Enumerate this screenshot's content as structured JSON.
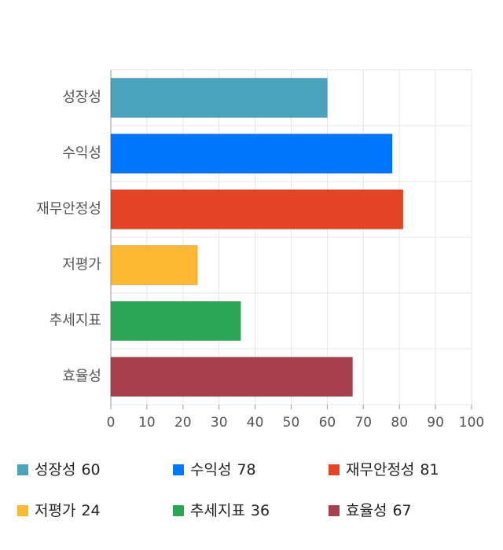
{
  "chart_data": {
    "type": "bar",
    "orientation": "horizontal",
    "categories": [
      "성장성",
      "수익성",
      "재무안정성",
      "저평가",
      "추세지표",
      "효율성"
    ],
    "values": [
      60,
      78,
      81,
      24,
      36,
      67
    ],
    "colors": [
      "#4aa3ba",
      "#0077ff",
      "#e24424",
      "#fdb833",
      "#2aa655",
      "#a6404f"
    ],
    "xlim": [
      0,
      100
    ],
    "xticks": [
      0,
      10,
      20,
      30,
      40,
      50,
      60,
      70,
      80,
      90,
      100
    ],
    "grid": true,
    "legend": "bottom"
  }
}
